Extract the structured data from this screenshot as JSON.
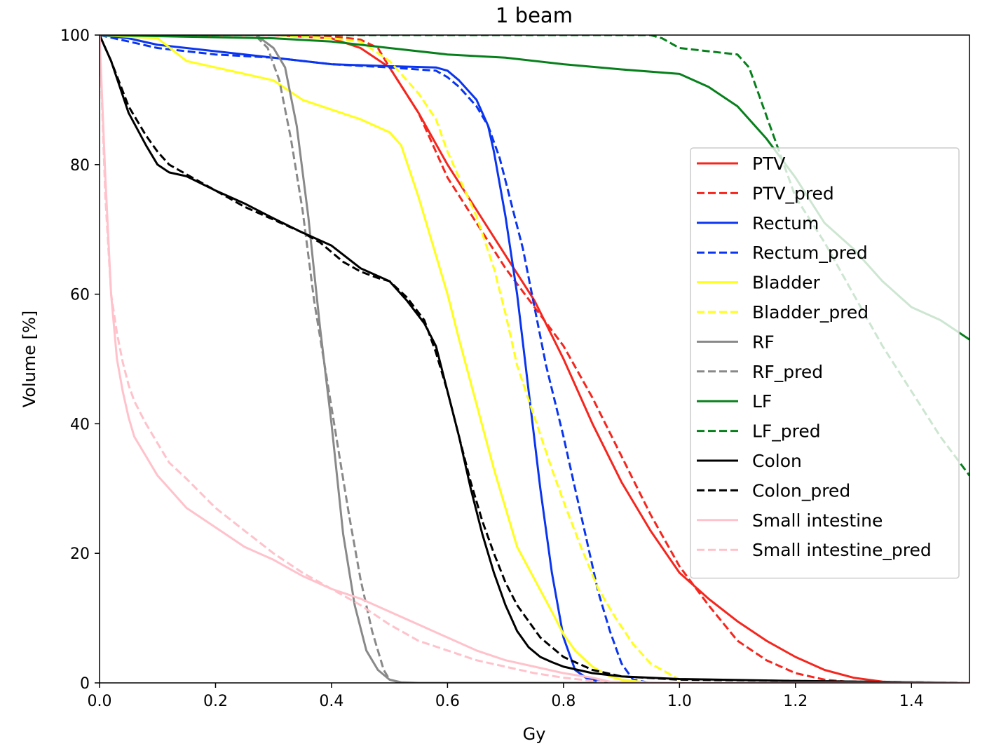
{
  "chart_data": {
    "type": "line",
    "title": "1 beam",
    "xlabel": "Gy",
    "ylabel": "Volume [%]",
    "xlim": [
      0.0,
      1.5
    ],
    "ylim": [
      0,
      100
    ],
    "xticks": [
      "0.0",
      "0.2",
      "0.4",
      "0.6",
      "0.8",
      "1.0",
      "1.2",
      "1.4"
    ],
    "yticks": [
      "0",
      "20",
      "40",
      "60",
      "80",
      "100"
    ],
    "grid": false,
    "legend_position": "right",
    "series": [
      {
        "name": "PTV",
        "color": "#f5261d",
        "style": "solid",
        "x": [
          0,
          0.3,
          0.4,
          0.45,
          0.5,
          0.55,
          0.6,
          0.65,
          0.7,
          0.75,
          0.8,
          0.85,
          0.9,
          0.95,
          1.0,
          1.05,
          1.1,
          1.15,
          1.2,
          1.25,
          1.3,
          1.35,
          1.4,
          1.5
        ],
        "y": [
          100,
          100,
          99.5,
          98,
          95,
          88,
          80,
          73,
          66,
          59,
          50,
          40,
          31,
          23.5,
          17,
          13,
          9.5,
          6.5,
          4,
          2,
          0.8,
          0.2,
          0,
          0
        ]
      },
      {
        "name": "PTV_pred",
        "color": "#f5261d",
        "style": "dashed",
        "x": [
          0,
          0.3,
          0.4,
          0.45,
          0.48,
          0.5,
          0.55,
          0.6,
          0.65,
          0.7,
          0.75,
          0.8,
          0.85,
          0.9,
          0.95,
          1.0,
          1.05,
          1.1,
          1.15,
          1.2,
          1.25,
          1.3,
          1.35,
          1.5
        ],
        "y": [
          100,
          100,
          99.8,
          99.3,
          98,
          95,
          88,
          78,
          71,
          64,
          58,
          52,
          44,
          35,
          26,
          18,
          12,
          6.5,
          3.5,
          1.5,
          0.5,
          0.1,
          0,
          0
        ]
      },
      {
        "name": "Rectum",
        "color": "#0a35f0",
        "style": "solid",
        "x": [
          0,
          0.05,
          0.1,
          0.2,
          0.3,
          0.4,
          0.5,
          0.58,
          0.6,
          0.62,
          0.65,
          0.67,
          0.68,
          0.7,
          0.72,
          0.74,
          0.76,
          0.78,
          0.8,
          0.82,
          0.84,
          0.87,
          0.9
        ],
        "y": [
          100,
          99.5,
          98.5,
          97.5,
          96.5,
          95.5,
          95.2,
          95,
          94.5,
          93,
          90,
          86,
          82,
          72,
          60,
          45,
          30,
          17,
          7,
          2,
          0.7,
          0,
          0
        ]
      },
      {
        "name": "Rectum_pred",
        "color": "#0a35f0",
        "style": "dashed",
        "x": [
          0,
          0.05,
          0.1,
          0.2,
          0.3,
          0.4,
          0.5,
          0.58,
          0.6,
          0.62,
          0.65,
          0.67,
          0.69,
          0.71,
          0.73,
          0.75,
          0.77,
          0.8,
          0.82,
          0.84,
          0.86,
          0.88,
          0.9,
          0.92,
          0.95
        ],
        "y": [
          100,
          99,
          98,
          97,
          96.5,
          95.5,
          95,
          94.5,
          93.5,
          92,
          89,
          86,
          81,
          74,
          67,
          58,
          49,
          38,
          30,
          22,
          14,
          8,
          3,
          0.5,
          0
        ]
      },
      {
        "name": "Bladder",
        "color": "#ffff1a",
        "style": "solid",
        "x": [
          0,
          0.1,
          0.15,
          0.2,
          0.25,
          0.3,
          0.35,
          0.4,
          0.45,
          0.5,
          0.52,
          0.55,
          0.58,
          0.6,
          0.62,
          0.65,
          0.68,
          0.7,
          0.72,
          0.75,
          0.78,
          0.8,
          0.82,
          0.85,
          0.88,
          0.9,
          0.95
        ],
        "y": [
          100,
          99.5,
          96,
          95,
          94,
          93,
          90,
          88.5,
          87,
          85,
          83,
          75,
          66,
          60,
          53,
          43,
          33,
          27,
          21,
          16,
          11,
          7.5,
          5,
          2.5,
          1,
          0.5,
          0
        ]
      },
      {
        "name": "Bladder_pred",
        "color": "#ffff1a",
        "style": "dashed",
        "x": [
          0,
          0.3,
          0.4,
          0.45,
          0.5,
          0.55,
          0.58,
          0.6,
          0.62,
          0.65,
          0.68,
          0.7,
          0.72,
          0.75,
          0.78,
          0.8,
          0.83,
          0.86,
          0.89,
          0.92,
          0.95,
          0.98,
          1.0
        ],
        "y": [
          100,
          100,
          99.5,
          99,
          96,
          91,
          87,
          82,
          78,
          72,
          64,
          57,
          49,
          41,
          33,
          28,
          21,
          14.5,
          10,
          6,
          3,
          1.5,
          0.5
        ]
      },
      {
        "name": "RF",
        "color": "#898989",
        "style": "solid",
        "x": [
          0.27,
          0.3,
          0.32,
          0.34,
          0.36,
          0.38,
          0.4,
          0.42,
          0.44,
          0.46,
          0.48,
          0.5,
          0.52,
          0.55,
          0.6,
          1.5
        ],
        "y": [
          100,
          98,
          95,
          86,
          72,
          55,
          40,
          23,
          12,
          5,
          2,
          0.5,
          0.1,
          0,
          0,
          0
        ]
      },
      {
        "name": "RF_pred",
        "color": "#898989",
        "style": "dashed",
        "x": [
          0.27,
          0.29,
          0.31,
          0.33,
          0.35,
          0.37,
          0.39,
          0.41,
          0.43,
          0.45,
          0.47,
          0.49,
          0.5,
          0.52,
          0.6,
          1.5
        ],
        "y": [
          99.8,
          98,
          93,
          84,
          73,
          59,
          48,
          37,
          26,
          16,
          8,
          2,
          0.5,
          0,
          0,
          0
        ]
      },
      {
        "name": "LF",
        "color": "#07801c",
        "style": "solid",
        "x": [
          0,
          0.3,
          0.4,
          0.5,
          0.6,
          0.7,
          0.8,
          0.9,
          1.0,
          1.05,
          1.1,
          1.15,
          1.2,
          1.25,
          1.3,
          1.35,
          1.4,
          1.45,
          1.5
        ],
        "y": [
          100,
          99.5,
          99,
          98,
          97,
          96.5,
          95.5,
          94.7,
          94,
          92,
          89,
          84,
          78,
          71,
          67,
          62,
          58,
          56,
          53
        ]
      },
      {
        "name": "LF_pred",
        "color": "#07801c",
        "style": "dashed",
        "x": [
          0,
          0.95,
          0.97,
          1.0,
          1.05,
          1.1,
          1.12,
          1.14,
          1.16,
          1.18,
          1.2,
          1.25,
          1.3,
          1.35,
          1.4,
          1.45,
          1.5
        ],
        "y": [
          100,
          100,
          99.5,
          98,
          97.5,
          97,
          95,
          90,
          85,
          80,
          75,
          68,
          60,
          52,
          45,
          38,
          32
        ]
      },
      {
        "name": "Colon",
        "color": "#000000",
        "style": "solid",
        "x": [
          0,
          0.02,
          0.05,
          0.08,
          0.1,
          0.12,
          0.15,
          0.2,
          0.25,
          0.3,
          0.35,
          0.4,
          0.45,
          0.5,
          0.53,
          0.56,
          0.58,
          0.6,
          0.62,
          0.64,
          0.66,
          0.68,
          0.7,
          0.72,
          0.74,
          0.76,
          0.78,
          0.8,
          0.85,
          0.9,
          1.0,
          1.2,
          1.5
        ],
        "y": [
          100,
          96,
          88,
          83,
          80,
          78.8,
          78.2,
          76,
          74,
          71.7,
          69.5,
          67.5,
          64,
          62,
          59,
          55.5,
          52,
          45,
          38,
          30,
          23,
          17,
          12,
          8,
          5.5,
          4,
          3.2,
          2.5,
          1.5,
          1,
          0.6,
          0.3,
          0
        ]
      },
      {
        "name": "Colon_pred",
        "color": "#000000",
        "style": "dashed",
        "x": [
          0,
          0.02,
          0.05,
          0.08,
          0.1,
          0.12,
          0.15,
          0.2,
          0.25,
          0.3,
          0.35,
          0.38,
          0.4,
          0.42,
          0.45,
          0.48,
          0.5,
          0.53,
          0.56,
          0.58,
          0.6,
          0.62,
          0.64,
          0.66,
          0.68,
          0.7,
          0.72,
          0.74,
          0.76,
          0.78,
          0.8,
          0.85,
          0.9,
          1.0,
          1.5
        ],
        "y": [
          100,
          96,
          89,
          84.5,
          82,
          80,
          78.5,
          76,
          73.5,
          71.5,
          69.5,
          68,
          66.5,
          65,
          63.5,
          62.5,
          62,
          59.5,
          56,
          51,
          45,
          38,
          31,
          25,
          20,
          15.5,
          12,
          9.5,
          7,
          5.5,
          4,
          2,
          1,
          0.5,
          0
        ]
      },
      {
        "name": "Small intestine",
        "color": "#ffc2cb",
        "style": "solid",
        "x": [
          0,
          0.01,
          0.02,
          0.03,
          0.04,
          0.05,
          0.06,
          0.08,
          0.1,
          0.12,
          0.15,
          0.2,
          0.25,
          0.3,
          0.33,
          0.35,
          0.4,
          0.45,
          0.5,
          0.55,
          0.6,
          0.65,
          0.7,
          0.75,
          0.8,
          0.85,
          0.88,
          1.0,
          1.5
        ],
        "y": [
          100,
          78,
          60,
          50,
          45,
          41,
          38,
          35,
          32,
          30,
          27,
          24,
          21,
          19,
          17.5,
          16.5,
          14.5,
          13,
          11,
          9,
          7,
          5,
          3.5,
          2.5,
          1.5,
          0.8,
          0.2,
          0,
          0
        ]
      },
      {
        "name": "Small intestine_pred",
        "color": "#ffc2cb",
        "style": "dashed",
        "x": [
          0,
          0.01,
          0.02,
          0.03,
          0.04,
          0.05,
          0.06,
          0.08,
          0.1,
          0.12,
          0.15,
          0.2,
          0.25,
          0.3,
          0.35,
          0.4,
          0.45,
          0.5,
          0.55,
          0.6,
          0.65,
          0.7,
          0.75,
          0.8,
          0.85,
          0.88,
          1.0,
          1.5
        ],
        "y": [
          100,
          75,
          60,
          54,
          49.5,
          46,
          43.5,
          40,
          37,
          34,
          31.5,
          27,
          23.5,
          20,
          17,
          14.5,
          12,
          9,
          6.5,
          5,
          3.5,
          2.5,
          1.5,
          0.8,
          0.3,
          0,
          0,
          0
        ]
      }
    ]
  }
}
